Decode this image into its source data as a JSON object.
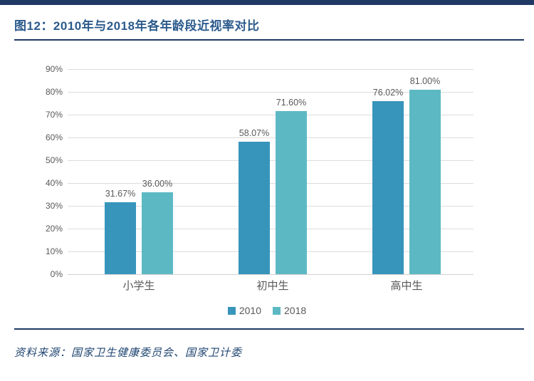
{
  "header": {
    "title": "图12：2010年与2018年各年龄段近视率对比"
  },
  "footer": {
    "source": "资料来源：国家卫生健康委员会、国家卫计委"
  },
  "colors": {
    "accent_navy": "#1F3864",
    "title_text": "#2B5A8C",
    "axis_text": "#595959",
    "gridline": "#DCDCDC",
    "series_2010": "#3795BC",
    "series_2018": "#5CB9C4"
  },
  "chart_data": {
    "type": "bar",
    "title": "图12：2010年与2018年各年龄段近视率对比",
    "categories": [
      "小学生",
      "初中生",
      "高中生"
    ],
    "series": [
      {
        "name": "2010",
        "color": "#3795BC",
        "values": [
          31.67,
          58.07,
          76.02
        ],
        "labels": [
          "31.67%",
          "58.07%",
          "76.02%"
        ]
      },
      {
        "name": "2018",
        "color": "#5CB9C4",
        "values": [
          36.0,
          71.6,
          81.0
        ],
        "labels": [
          "36.00%",
          "71.60%",
          "81.00%"
        ]
      }
    ],
    "xlabel": "",
    "ylabel": "",
    "ylim": [
      0,
      90
    ],
    "ytick_step": 10,
    "ytick_suffix": "%",
    "grid": true,
    "legend_position": "bottom"
  }
}
